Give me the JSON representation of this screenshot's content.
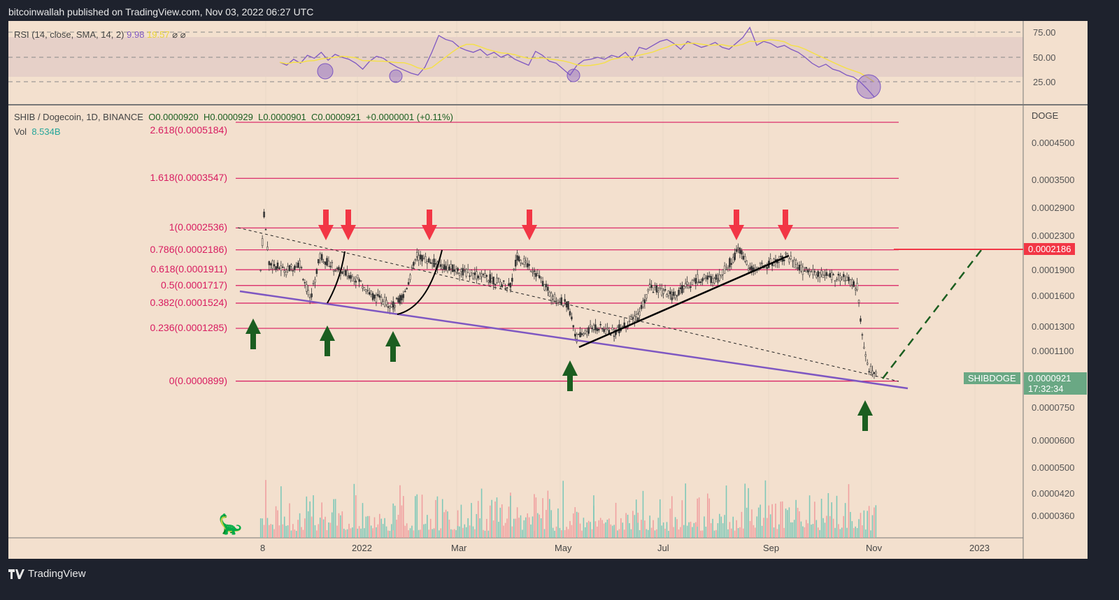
{
  "header": {
    "published": "bitcoinwallah published on TradingView.com, Nov 03, 2022 06:27 UTC"
  },
  "rsi": {
    "label": "RSI (14, close, SMA, 14, 2)",
    "value": "9.98",
    "sma": "19.57",
    "extra1": "⌀",
    "extra2": "⌀",
    "ticks": [
      "75.00",
      "50.00",
      "25.00"
    ],
    "colors": {
      "rsi": "#7e57c2",
      "sma": "#f5e04a"
    },
    "series": [
      45,
      42,
      48,
      44,
      52,
      49,
      55,
      47,
      53,
      50,
      48,
      44,
      38,
      46,
      51,
      49,
      44,
      40,
      37,
      34,
      32,
      40,
      55,
      72,
      68,
      66,
      60,
      57,
      55,
      58,
      52,
      55,
      50,
      53,
      48,
      45,
      42,
      56,
      52,
      46,
      44,
      38,
      32,
      42,
      47,
      48,
      50,
      48,
      52,
      50,
      55,
      47,
      60,
      58,
      62,
      66,
      68,
      64,
      58,
      66,
      63,
      60,
      62,
      65,
      60,
      58,
      64,
      70,
      80,
      62,
      66,
      64,
      60,
      62,
      58,
      55,
      50,
      44,
      40,
      43,
      38,
      36,
      32,
      30,
      25,
      18,
      10
    ]
  },
  "main": {
    "symbol": "SHIB / Dogecoin, 1D, BINANCE",
    "open": "O0.0000920",
    "high": "H0.0000929",
    "low": "L0.0000901",
    "close": "C0.0000921",
    "change": "+0.0000001 (+0.11%)",
    "vol_label": "Vol",
    "vol_value": "8.534B",
    "currency": "DOGE"
  },
  "fib_levels": [
    {
      "label": "2.618(0.0005184)",
      "price": 0.0005184
    },
    {
      "label": "1.618(0.0003547)",
      "price": 0.0003547
    },
    {
      "label": "1(0.0002536)",
      "price": 0.0002536
    },
    {
      "label": "0.786(0.0002186)",
      "price": 0.0002186
    },
    {
      "label": "0.618(0.0001911)",
      "price": 0.0001911
    },
    {
      "label": "0.5(0.0001717)",
      "price": 0.0001717
    },
    {
      "label": "0.382(0.0001524)",
      "price": 0.0001524
    },
    {
      "label": "0.236(0.0001285)",
      "price": 0.0001285
    },
    {
      "label": "0(0.0000899)",
      "price": 8.99e-05
    }
  ],
  "price_axis": [
    "0.0004500",
    "0.0003500",
    "0.0002900",
    "0.0002300",
    "0.0001900",
    "0.0001600",
    "0.0001300",
    "0.0001100",
    "0.0000750",
    "0.0000600",
    "0.0000500",
    "0.0000420",
    "0.0000360"
  ],
  "time_axis": [
    "8",
    "2022",
    "Mar",
    "May",
    "Jul",
    "Sep",
    "Nov",
    "2023"
  ],
  "tags": {
    "target": "0.0002186",
    "symbol": "SHIBDOGE",
    "last": "0.0000921",
    "countdown": "17:32:34"
  },
  "colors": {
    "background": "#f3e0ce",
    "fib": "#d81b60",
    "support": "#7e57c2",
    "up_arrow": "#1b5e20",
    "down_arrow": "#f23645",
    "last_price": "#6aa884"
  },
  "chart_data": {
    "type": "candlestick",
    "scale": "log",
    "ylim": [
      3.4e-05,
      0.00057
    ],
    "price": [
      [
        "2021-11-05",
        0.00019
      ],
      [
        "2021-11-07",
        0.00028
      ],
      [
        "2021-11-10",
        0.0002
      ],
      [
        "2021-11-20",
        0.00019
      ],
      [
        "2021-11-28",
        0.0002
      ],
      [
        "2021-12-04",
        0.000155
      ],
      [
        "2021-12-10",
        0.00021
      ],
      [
        "2021-12-20",
        0.00019
      ],
      [
        "2022-01-01",
        0.00018
      ],
      [
        "2022-01-10",
        0.00016
      ],
      [
        "2022-01-22",
        0.00015
      ],
      [
        "2022-01-28",
        0.00016
      ],
      [
        "2022-02-05",
        0.00021
      ],
      [
        "2022-02-15",
        0.0002
      ],
      [
        "2022-03-01",
        0.00019
      ],
      [
        "2022-03-20",
        0.00018
      ],
      [
        "2022-04-01",
        0.00017
      ],
      [
        "2022-04-05",
        0.00021
      ],
      [
        "2022-04-15",
        0.00019
      ],
      [
        "2022-04-25",
        0.00016
      ],
      [
        "2022-05-05",
        0.00015
      ],
      [
        "2022-05-10",
        0.00012
      ],
      [
        "2022-05-20",
        0.00013
      ],
      [
        "2022-06-01",
        0.000125
      ],
      [
        "2022-06-15",
        0.00014
      ],
      [
        "2022-06-22",
        0.00017
      ],
      [
        "2022-07-05",
        0.00016
      ],
      [
        "2022-07-20",
        0.00018
      ],
      [
        "2022-08-01",
        0.00018
      ],
      [
        "2022-08-14",
        0.00022
      ],
      [
        "2022-08-20",
        0.00019
      ],
      [
        "2022-09-01",
        0.0002
      ],
      [
        "2022-09-10",
        0.00021
      ],
      [
        "2022-09-20",
        0.00019
      ],
      [
        "2022-10-01",
        0.000185
      ],
      [
        "2022-10-15",
        0.00018
      ],
      [
        "2022-10-22",
        0.00017
      ],
      [
        "2022-10-25",
        0.00012
      ],
      [
        "2022-10-28",
        0.0001
      ],
      [
        "2022-11-03",
        9.21e-05
      ]
    ]
  },
  "footer": {
    "brand": "TradingView"
  }
}
